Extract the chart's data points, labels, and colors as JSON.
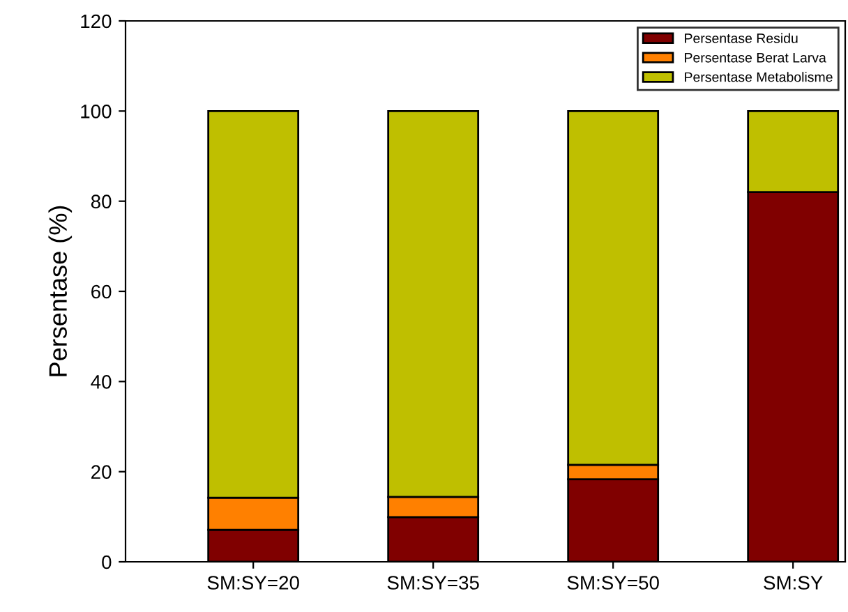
{
  "chart_data": {
    "type": "bar",
    "stacked": true,
    "ylabel": "Persentase (%)",
    "categories": [
      "SM:SY=20",
      "SM:SY=35",
      "SM:SY=50",
      "SM:SY"
    ],
    "series": [
      {
        "name": "Persentase Residu",
        "color": "#800000",
        "values": [
          7.1,
          9.9,
          18.3,
          82
        ]
      },
      {
        "name": "Persentase Berat Larva",
        "color": "#ff8000",
        "values": [
          7.1,
          4.5,
          3.2,
          0
        ]
      },
      {
        "name": "Persentase Metabolisme",
        "color": "#bfbf00",
        "values": [
          85.8,
          85.6,
          78.5,
          18
        ]
      }
    ],
    "ylim": [
      0,
      120
    ],
    "yticks": [
      0,
      20,
      40,
      60,
      80,
      100,
      120
    ],
    "grid": false,
    "legend": "top right"
  }
}
